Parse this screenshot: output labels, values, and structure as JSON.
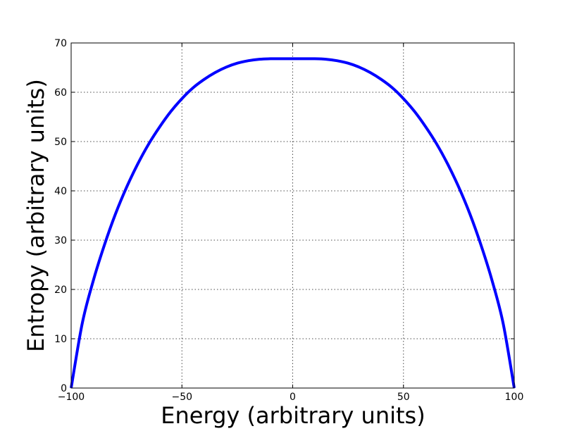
{
  "chart_data": {
    "type": "line",
    "title": "",
    "xlabel": "Energy (arbitrary units)",
    "ylabel": "Entropy (arbitrary units)",
    "xlim": [
      -100,
      100
    ],
    "ylim": [
      0,
      70
    ],
    "xticks": [
      -100,
      -50,
      0,
      50,
      100
    ],
    "xtick_labels": [
      "−100",
      "−50",
      "0",
      "50",
      "100"
    ],
    "yticks": [
      0,
      10,
      20,
      30,
      40,
      50,
      60,
      70
    ],
    "ytick_labels": [
      "0",
      "10",
      "20",
      "30",
      "40",
      "50",
      "60",
      "70"
    ],
    "grid": true,
    "legend": "none",
    "series": [
      {
        "color": "#0000ff",
        "x": [
          -100,
          -95,
          -90,
          -85,
          -80,
          -75,
          -70,
          -65,
          -60,
          -55,
          -50,
          -45,
          -40,
          -35,
          -30,
          -25,
          -20,
          -15,
          -10,
          -5,
          0,
          5,
          10,
          15,
          20,
          25,
          30,
          35,
          40,
          45,
          50,
          55,
          60,
          65,
          70,
          75,
          80,
          85,
          90,
          95,
          100
        ],
        "y": [
          0,
          13.1,
          21.8,
          29.0,
          35.3,
          40.7,
          45.4,
          49.5,
          53.0,
          56.1,
          58.7,
          60.9,
          62.6,
          64.0,
          65.1,
          65.9,
          66.4,
          66.7,
          66.8,
          66.8,
          66.8,
          66.8,
          66.8,
          66.7,
          66.4,
          65.9,
          65.1,
          64.0,
          62.6,
          60.9,
          58.7,
          56.1,
          53.0,
          49.5,
          45.4,
          40.7,
          35.3,
          29.0,
          21.8,
          13.1,
          0
        ]
      }
    ]
  }
}
